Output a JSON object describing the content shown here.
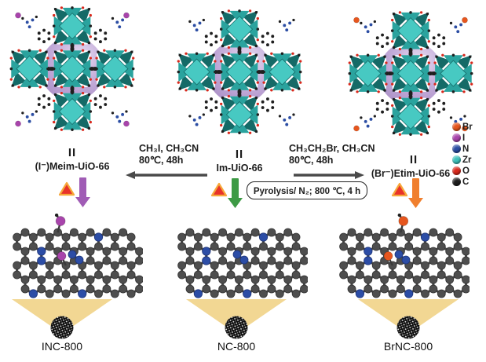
{
  "legend": {
    "items": [
      {
        "label": "Br",
        "color": "#e6561e"
      },
      {
        "label": "I",
        "color": "#a844ab"
      },
      {
        "label": "N",
        "color": "#2b4da3"
      },
      {
        "label": "Zr",
        "color": "#3fc1bb"
      },
      {
        "label": "O",
        "color": "#d9281c"
      },
      {
        "label": "C",
        "color": "#1d1d1d"
      }
    ]
  },
  "columns": [
    {
      "equiv": "II",
      "mof_label": "(I⁻)Meim-UiO-66",
      "product_label": "INC-800",
      "arrow_color": "#a05cb5",
      "dopant_color": "#a844ab"
    },
    {
      "equiv": "II",
      "mof_label": "Im-UiO-66",
      "product_label": "NC-800",
      "arrow_color": "#3d9a45",
      "dopant_color": ""
    },
    {
      "equiv": "II",
      "mof_label": "(Br⁻)Etim-UiO-66",
      "product_label": "BrNC-800",
      "arrow_color": "#f07f2e",
      "dopant_color": "#e6561e"
    }
  ],
  "reactions": {
    "left": {
      "line1": "CH₃I, CH₃CN",
      "line2": "80℃, 48h"
    },
    "right": {
      "line1": "CH₃CH₂Br, CH₃CN",
      "line2": "80℃, 48h"
    },
    "pyrolysis_label": "Pyrolysis/ N₂; 800 ℃, 4 h"
  },
  "symbols": {
    "heat_triangle_fill": "#e8332a",
    "heat_triangle_stroke": "#f6a83a",
    "horizontal_arrow_color": "#4a4a4a",
    "funnel_color": "#f2d793",
    "nanoparticle_color": "#0d0d0d"
  },
  "mof_colors": {
    "zr_light": "#47c9c2",
    "zr_mid": "#2aa39e",
    "zr_dark": "#156a67",
    "cage_sphere": "#b69bcf",
    "carbon": "#1f1f1f",
    "oxygen": "#d9281c",
    "nitrogen": "#2b4da3"
  },
  "graphene_colors": {
    "carbon": "#4e4e4e",
    "bond": "#4a4a4a",
    "nitrogen": "#2c4da6"
  }
}
